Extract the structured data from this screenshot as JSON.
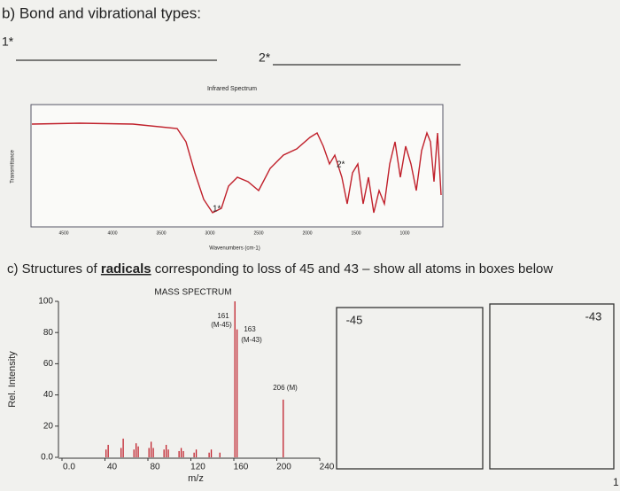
{
  "section_b": {
    "heading": "b) Bond and vibrational types:",
    "blank_1": "1*",
    "blank_2": "2*"
  },
  "ir_spectrum": {
    "title": "Infrared Spectrum",
    "x_label": "Wavenumbers (cm-1)",
    "y_label": "Transmittance",
    "x_tick_labels": [
      "4500",
      "4000",
      "3500",
      "3000",
      "2500",
      "2000",
      "1500",
      "1000"
    ],
    "markers": [
      "1*",
      "2*"
    ]
  },
  "section_c": {
    "heading_start": "c) Structures of ",
    "heading_bold": "radicals",
    "heading_end": " corresponding to loss of 45 and 43 – show all atoms in boxes below"
  },
  "mass_spectrum": {
    "title": "MASS SPECTRUM",
    "x_label": "m/z",
    "y_label": "Rel. Intensity",
    "xlim": [
      0,
      240
    ],
    "ylim": [
      0,
      100
    ],
    "xticks": [
      {
        "value": 0,
        "label": "0.0"
      },
      40,
      80,
      120,
      160,
      200,
      240
    ],
    "yticks": [
      {
        "value": 0,
        "label": "0.0"
      },
      20,
      40,
      60,
      80,
      100
    ],
    "peaks": {
      "x": [
        41,
        43,
        55,
        57,
        67,
        69,
        71,
        81,
        83,
        85,
        95,
        97,
        99,
        109,
        111,
        113,
        123,
        125,
        137,
        139,
        147,
        161,
        163,
        206
      ],
      "values": [
        5,
        8,
        6,
        12,
        5,
        9,
        7,
        6,
        10,
        6,
        5,
        8,
        5,
        4,
        6,
        4,
        3,
        5,
        3,
        5,
        3,
        100,
        82,
        37
      ]
    },
    "annotations": [
      "161",
      "(M-45)",
      "163",
      "(M-43)",
      "206 (M)"
    ]
  },
  "boxes": [
    "-45",
    "-43"
  ],
  "page_number": "1"
}
